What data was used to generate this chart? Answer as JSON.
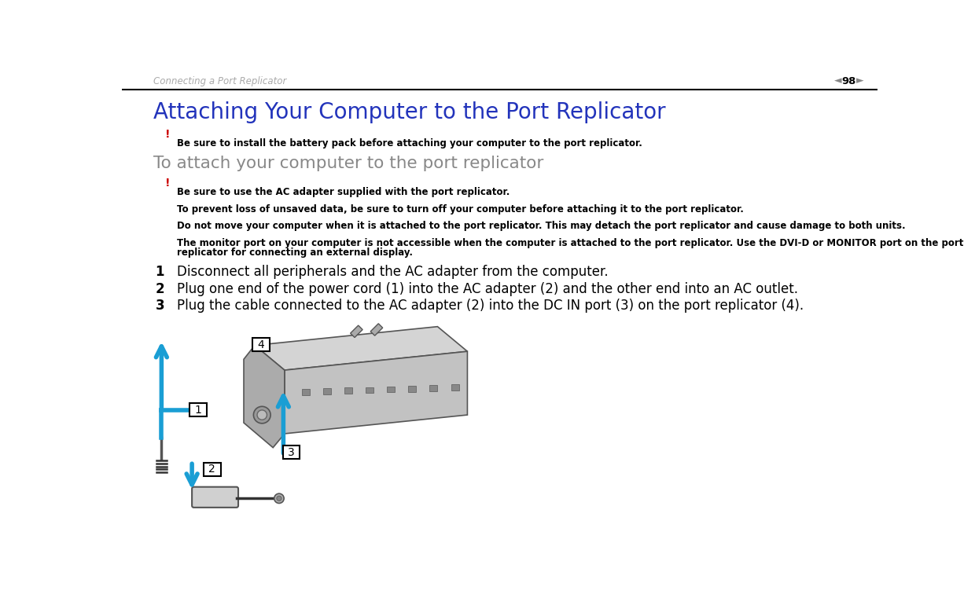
{
  "bg_color": "#ffffff",
  "header_text": "Connecting a Port Replicator",
  "page_num": "98",
  "title": "Attaching Your Computer to the Port Replicator",
  "title_color": "#2233bb",
  "subtitle": "To attach your computer to the port replicator",
  "subtitle_color": "#888888",
  "exclamation_color": "#cc0000",
  "warning1": "Be sure to install the battery pack before attaching your computer to the port replicator.",
  "warning2": "Be sure to use the AC adapter supplied with the port replicator.",
  "note1": "To prevent loss of unsaved data, be sure to turn off your computer before attaching it to the port replicator.",
  "note2": "Do not move your computer when it is attached to the port replicator. This may detach the port replicator and cause damage to both units.",
  "note3_line1": "The monitor port on your computer is not accessible when the computer is attached to the port replicator. Use the DVI-D or MONITOR port on the port",
  "note3_line2": "replicator for connecting an external display.",
  "step1": "Disconnect all peripherals and the AC adapter from the computer.",
  "step2": "Plug one end of the power cord (1) into the AC adapter (2) and the other end into an AC outlet.",
  "step3": "Plug the cable connected to the AC adapter (2) into the DC IN port (3) on the port replicator (4).",
  "arrow_color": "#1a9ed4",
  "header_line_color": "#000000",
  "text_color": "#000000",
  "note_text_color": "#000000",
  "header_color": "#aaaaaa"
}
